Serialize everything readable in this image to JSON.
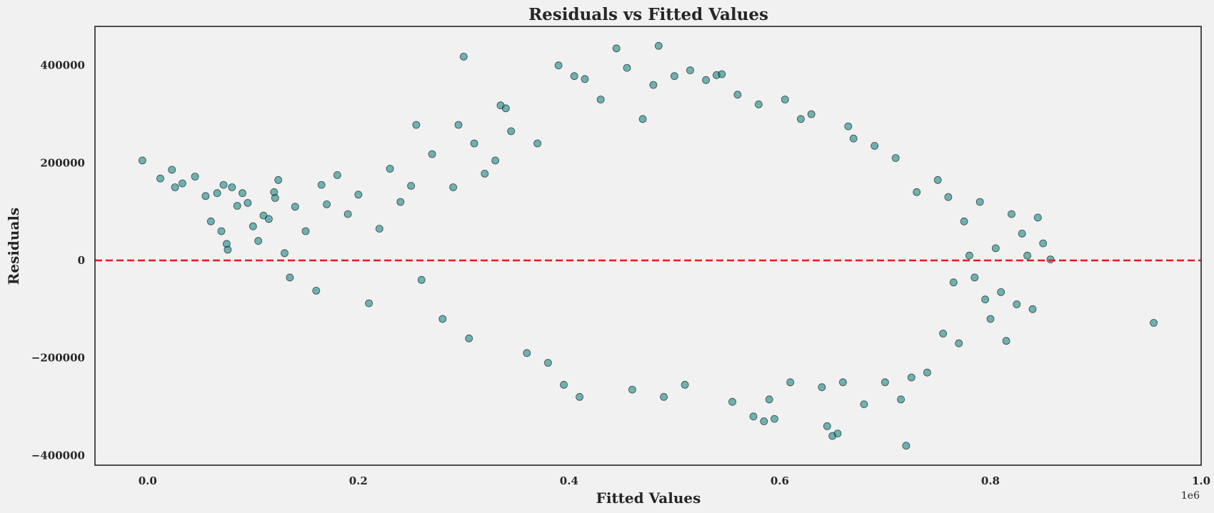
{
  "chart_data": {
    "type": "scatter",
    "title": "Residuals vs Fitted Values",
    "xlabel": "Fitted Values",
    "ylabel": "Residuals",
    "x_offset_label": "1e6",
    "xlim": [
      -0.05,
      1.0
    ],
    "ylim": [
      -420000,
      480000
    ],
    "x_ticks": [
      0.0,
      0.2,
      0.4,
      0.6,
      0.8,
      1.0
    ],
    "x_tick_labels": [
      "0.0",
      "0.2",
      "0.4",
      "0.6",
      "0.8",
      "1.0"
    ],
    "y_ticks": [
      400000,
      200000,
      0,
      -200000,
      -400000
    ],
    "y_tick_labels": [
      "400000",
      "200000",
      "0",
      "−200000",
      "−400000"
    ],
    "reference_line": {
      "y": 0,
      "color": "#e41a1c",
      "style": "dashed"
    },
    "marker_color": "#007b7b",
    "marker_edge": "#1a1a1a",
    "grid": false,
    "series": [
      {
        "points": [
          [
            -0.005,
            205000
          ],
          [
            0.012,
            168000
          ],
          [
            0.023,
            186000
          ],
          [
            0.026,
            150000
          ],
          [
            0.033,
            158000
          ],
          [
            0.045,
            172000
          ],
          [
            0.055,
            132000
          ],
          [
            0.06,
            80000
          ],
          [
            0.066,
            138000
          ],
          [
            0.07,
            60000
          ],
          [
            0.072,
            155000
          ],
          [
            0.075,
            34000
          ],
          [
            0.076,
            22000
          ],
          [
            0.08,
            150000
          ],
          [
            0.085,
            112000
          ],
          [
            0.09,
            138000
          ],
          [
            0.095,
            118000
          ],
          [
            0.1,
            70000
          ],
          [
            0.105,
            40000
          ],
          [
            0.11,
            92000
          ],
          [
            0.115,
            85000
          ],
          [
            0.12,
            140000
          ],
          [
            0.121,
            128000
          ],
          [
            0.124,
            165000
          ],
          [
            0.13,
            15000
          ],
          [
            0.135,
            -35000
          ],
          [
            0.14,
            110000
          ],
          [
            0.15,
            60000
          ],
          [
            0.16,
            -62000
          ],
          [
            0.165,
            155000
          ],
          [
            0.17,
            115000
          ],
          [
            0.18,
            175000
          ],
          [
            0.19,
            95000
          ],
          [
            0.2,
            135000
          ],
          [
            0.21,
            -88000
          ],
          [
            0.22,
            65000
          ],
          [
            0.23,
            188000
          ],
          [
            0.24,
            120000
          ],
          [
            0.25,
            153000
          ],
          [
            0.255,
            278000
          ],
          [
            0.26,
            -40000
          ],
          [
            0.27,
            218000
          ],
          [
            0.28,
            -120000
          ],
          [
            0.29,
            150000
          ],
          [
            0.295,
            278000
          ],
          [
            0.3,
            418000
          ],
          [
            0.305,
            -160000
          ],
          [
            0.31,
            240000
          ],
          [
            0.32,
            178000
          ],
          [
            0.33,
            205000
          ],
          [
            0.335,
            318000
          ],
          [
            0.34,
            312000
          ],
          [
            0.345,
            265000
          ],
          [
            0.36,
            -190000
          ],
          [
            0.37,
            240000
          ],
          [
            0.38,
            -210000
          ],
          [
            0.39,
            400000
          ],
          [
            0.395,
            -255000
          ],
          [
            0.405,
            378000
          ],
          [
            0.41,
            -280000
          ],
          [
            0.415,
            372000
          ],
          [
            0.43,
            330000
          ],
          [
            0.445,
            435000
          ],
          [
            0.455,
            395000
          ],
          [
            0.46,
            -265000
          ],
          [
            0.47,
            290000
          ],
          [
            0.48,
            360000
          ],
          [
            0.485,
            440000
          ],
          [
            0.49,
            -280000
          ],
          [
            0.5,
            378000
          ],
          [
            0.51,
            -255000
          ],
          [
            0.515,
            390000
          ],
          [
            0.53,
            370000
          ],
          [
            0.54,
            380000
          ],
          [
            0.545,
            382000
          ],
          [
            0.555,
            -290000
          ],
          [
            0.56,
            340000
          ],
          [
            0.575,
            -320000
          ],
          [
            0.58,
            320000
          ],
          [
            0.585,
            -330000
          ],
          [
            0.59,
            -285000
          ],
          [
            0.595,
            -325000
          ],
          [
            0.605,
            330000
          ],
          [
            0.61,
            -250000
          ],
          [
            0.62,
            290000
          ],
          [
            0.63,
            300000
          ],
          [
            0.64,
            -260000
          ],
          [
            0.645,
            -340000
          ],
          [
            0.65,
            -360000
          ],
          [
            0.655,
            -355000
          ],
          [
            0.66,
            -250000
          ],
          [
            0.665,
            275000
          ],
          [
            0.67,
            250000
          ],
          [
            0.68,
            -295000
          ],
          [
            0.69,
            235000
          ],
          [
            0.7,
            -250000
          ],
          [
            0.71,
            210000
          ],
          [
            0.715,
            -285000
          ],
          [
            0.72,
            -380000
          ],
          [
            0.725,
            -240000
          ],
          [
            0.73,
            140000
          ],
          [
            0.74,
            -230000
          ],
          [
            0.75,
            165000
          ],
          [
            0.755,
            -150000
          ],
          [
            0.76,
            130000
          ],
          [
            0.765,
            -45000
          ],
          [
            0.77,
            -170000
          ],
          [
            0.775,
            80000
          ],
          [
            0.78,
            10000
          ],
          [
            0.785,
            -35000
          ],
          [
            0.79,
            120000
          ],
          [
            0.795,
            -80000
          ],
          [
            0.8,
            -120000
          ],
          [
            0.805,
            25000
          ],
          [
            0.81,
            -65000
          ],
          [
            0.815,
            -165000
          ],
          [
            0.82,
            95000
          ],
          [
            0.825,
            -90000
          ],
          [
            0.83,
            55000
          ],
          [
            0.835,
            10000
          ],
          [
            0.84,
            -100000
          ],
          [
            0.845,
            88000
          ],
          [
            0.85,
            35000
          ],
          [
            0.857,
            2000
          ],
          [
            0.955,
            -128000
          ]
        ]
      }
    ]
  }
}
